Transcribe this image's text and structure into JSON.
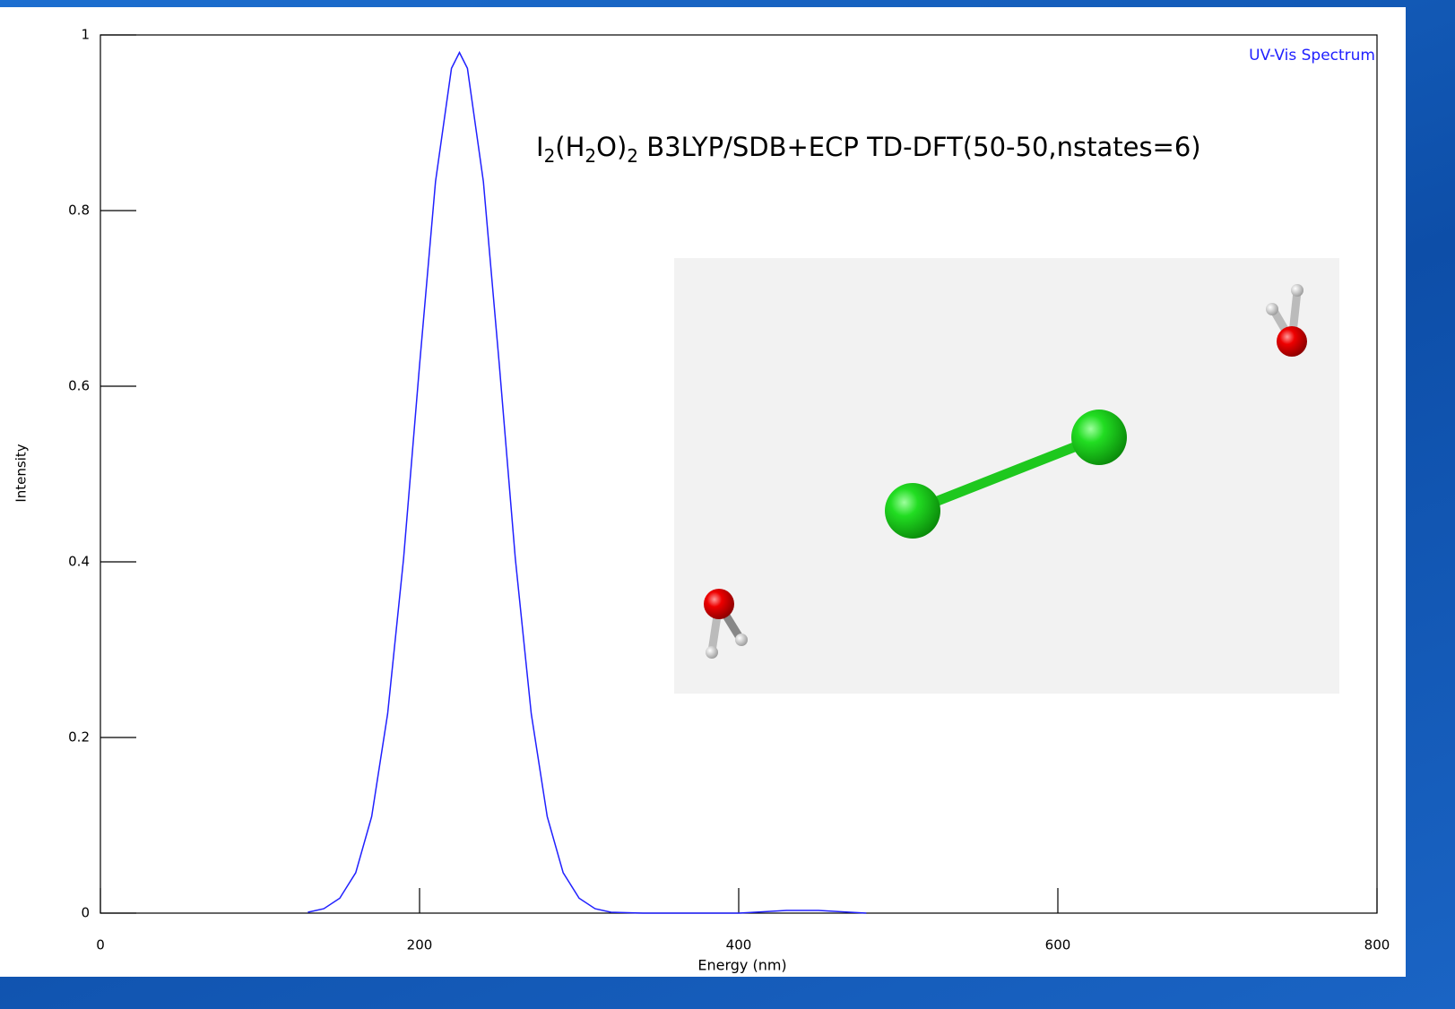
{
  "chart_data": {
    "type": "line",
    "x_label": "Energy (nm)",
    "y_label": "Intensity",
    "annotation": [
      {
        "text": "I"
      },
      {
        "text": "2",
        "sub": true
      },
      {
        "text": "(H"
      },
      {
        "text": "2",
        "sub": true
      },
      {
        "text": "O)"
      },
      {
        "text": "2",
        "sub": true
      },
      {
        "text": " B3LYP/SDB+ECP TD-DFT(50-50,nstates=6)"
      }
    ],
    "xlim": [
      0,
      800
    ],
    "ylim": [
      0,
      1
    ],
    "xticks": [
      0,
      200,
      400,
      600,
      800
    ],
    "yticks": [
      0,
      0.2,
      0.4,
      0.6,
      0.8,
      1
    ],
    "series": [
      {
        "name": "UV-Vis Spectrum",
        "color": "#2020ff",
        "x": [
          130,
          140,
          150,
          160,
          170,
          180,
          190,
          200,
          210,
          220,
          225,
          230,
          240,
          250,
          260,
          270,
          280,
          290,
          300,
          310,
          320,
          340,
          400,
          430,
          450,
          480
        ],
        "values": [
          0.001,
          0.005,
          0.017,
          0.046,
          0.11,
          0.227,
          0.404,
          0.624,
          0.833,
          0.962,
          0.98,
          0.962,
          0.833,
          0.624,
          0.404,
          0.227,
          0.11,
          0.046,
          0.017,
          0.005,
          0.001,
          0,
          0,
          0.003,
          0.003,
          0
        ]
      }
    ]
  }
}
